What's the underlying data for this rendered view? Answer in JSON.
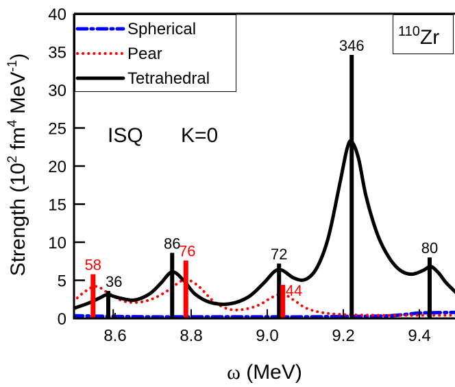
{
  "chart_data": {
    "type": "line",
    "title": "",
    "xlabel": "ω (MeV)",
    "ylabel": "Strength (10² fm⁴ MeV⁻¹)",
    "xlim": [
      8.49,
      9.5
    ],
    "ylim": [
      0,
      40
    ],
    "xticks": [
      8.6,
      8.8,
      9.0,
      9.2,
      9.4
    ],
    "xtick_labels": [
      "8.6",
      "8.8",
      "9.0",
      "9.2",
      "9.4"
    ],
    "yticks": [
      0,
      5,
      10,
      15,
      20,
      25,
      30,
      35,
      40
    ],
    "ytick_labels": [
      "0",
      "5",
      "10",
      "15",
      "20",
      "25",
      "30",
      "35",
      "40"
    ],
    "grid": false,
    "legend_position": "upper left",
    "legend": [
      {
        "name": "Spherical",
        "color": "#0000ff",
        "style": "dash-dot"
      },
      {
        "name": "Pear",
        "color": "#ff0000",
        "style": "dotted"
      },
      {
        "name": "Tetrahedral",
        "color": "#000000",
        "style": "solid"
      }
    ],
    "annotations": {
      "nucleus_mass": "110",
      "nucleus_symbol": "Zr",
      "operator": "ISQ",
      "k_value": "K=0"
    },
    "series": [
      {
        "name": "Spherical",
        "color": "#0000ff",
        "x": [
          8.49,
          8.6,
          8.7,
          8.8,
          8.9,
          9.0,
          9.1,
          9.2,
          9.3,
          9.35,
          9.4,
          9.45,
          9.5
        ],
        "y": [
          0.35,
          0.25,
          0.2,
          0.2,
          0.2,
          0.2,
          0.2,
          0.25,
          0.3,
          0.45,
          0.7,
          0.75,
          0.8
        ]
      },
      {
        "name": "Pear",
        "color": "#ff0000",
        "x": [
          8.49,
          8.52,
          8.55,
          8.58,
          8.62,
          8.66,
          8.7,
          8.74,
          8.77,
          8.79,
          8.82,
          8.86,
          8.9,
          8.94,
          8.98,
          9.01,
          9.04,
          9.07,
          9.1,
          9.14,
          9.2,
          9.3,
          9.4,
          9.5
        ],
        "y": [
          2.2,
          3.5,
          4.2,
          3.4,
          2.3,
          2.1,
          2.6,
          3.7,
          4.8,
          5.1,
          4.2,
          2.2,
          1.2,
          1.2,
          1.8,
          2.7,
          3.2,
          2.4,
          1.4,
          0.8,
          0.5,
          0.4,
          0.4,
          0.4
        ]
      },
      {
        "name": "Tetrahedral",
        "color": "#000000",
        "x": [
          8.49,
          8.53,
          8.56,
          8.58,
          8.61,
          8.65,
          8.69,
          8.72,
          8.75,
          8.78,
          8.81,
          8.85,
          8.9,
          8.95,
          8.99,
          9.02,
          9.04,
          9.07,
          9.1,
          9.13,
          9.16,
          9.19,
          9.21,
          9.222,
          9.24,
          9.26,
          9.29,
          9.32,
          9.35,
          9.38,
          9.41,
          9.43,
          9.45,
          9.47,
          9.5
        ],
        "y": [
          1.3,
          2.0,
          2.7,
          3.1,
          2.7,
          2.4,
          3.2,
          4.6,
          6.1,
          5.0,
          3.2,
          2.1,
          1.9,
          2.8,
          4.6,
          6.2,
          6.3,
          5.3,
          5.1,
          6.6,
          10.5,
          17.5,
          22.3,
          23.2,
          21.0,
          16.0,
          11.0,
          8.0,
          6.3,
          5.8,
          6.3,
          6.8,
          6.0,
          4.7,
          3.2
        ]
      }
    ],
    "sticks": [
      {
        "series": "Pear",
        "x": 8.542,
        "height": 5.8,
        "label": "58",
        "color": "#ff0000"
      },
      {
        "series": "Tetrahedral",
        "x": 8.582,
        "height": 3.6,
        "label": "36",
        "color": "#000000"
      },
      {
        "series": "Tetrahedral",
        "x": 8.75,
        "height": 8.6,
        "label": "86",
        "color": "#000000"
      },
      {
        "series": "Pear",
        "x": 8.786,
        "height": 7.6,
        "label": "76",
        "color": "#ff0000"
      },
      {
        "series": "Tetrahedral",
        "x": 9.031,
        "height": 7.2,
        "label": "72",
        "color": "#000000"
      },
      {
        "series": "Pear",
        "x": 9.041,
        "height": 4.4,
        "label": "44",
        "color": "#ff0000"
      },
      {
        "series": "Tetrahedral",
        "x": 9.222,
        "height": 34.6,
        "label": "346",
        "color": "#000000"
      },
      {
        "series": "Tetrahedral",
        "x": 9.427,
        "height": 8.0,
        "label": "80",
        "color": "#000000"
      }
    ],
    "minor_sticks": [
      {
        "x": 8.595,
        "height": 1.2
      },
      {
        "x": 8.8,
        "height": 1.2
      },
      {
        "x": 9.0,
        "height": 1.2
      },
      {
        "x": 9.2,
        "height": 1.2
      },
      {
        "x": 9.4,
        "height": 1.2
      }
    ]
  },
  "legend": {
    "spherical": "Spherical",
    "pear": "Pear",
    "tetrahedral": "Tetrahedral"
  },
  "nucleus": {
    "mass": "110",
    "symbol": "Zr"
  },
  "annotation": {
    "operator": "ISQ",
    "k": "K=0"
  },
  "axes": {
    "xlabel_symbol": "ω",
    "xlabel_unit": "(MeV)",
    "ylabel_main": "Strength (10",
    "ylabel_sup1": "2",
    "ylabel_mid": " fm",
    "ylabel_sup2": "4",
    "ylabel_mid2": " MeV",
    "ylabel_sup3": "-1",
    "ylabel_end": ")"
  }
}
